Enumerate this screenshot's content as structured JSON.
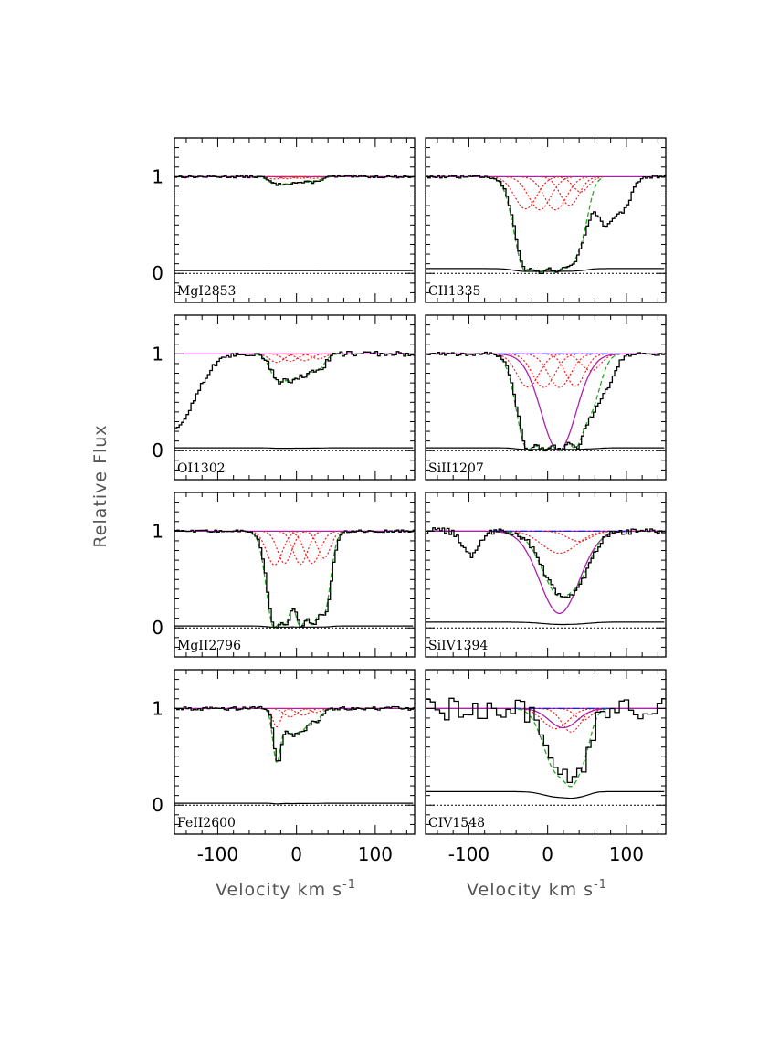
{
  "chart_data": {
    "type": "line",
    "ylabel": "Relative Flux",
    "xlabel": "Velocity km s",
    "xlabel_superscript": "-1",
    "xlim": [
      -155,
      150
    ],
    "ylim": [
      -0.3,
      1.4
    ],
    "xticks": [
      -100,
      0,
      100
    ],
    "xtick_labels": [
      "-100",
      "0",
      "100"
    ],
    "yticks": [
      0,
      1
    ],
    "ytick_labels": [
      "0",
      "1"
    ],
    "legend": "none",
    "colors": {
      "data": "#000000",
      "total_model": "#22aa22",
      "component_model": "#ee2222",
      "alt_model": "#aa22aa",
      "continuum_alt": "#2222cc",
      "zero_level": "#000000"
    },
    "panels": [
      {
        "label": "MgI2853",
        "components": [
          [
            -28,
            0.07,
            8
          ],
          [
            -12,
            0.06,
            8
          ],
          [
            5,
            0.05,
            8
          ],
          [
            22,
            0.05,
            8
          ]
        ],
        "violet": null,
        "features": [],
        "noise": 0.012,
        "error_level": 0.03
      },
      {
        "label": "CII1335",
        "components": [
          [
            -28,
            0.95,
            14
          ],
          [
            -10,
            0.98,
            14
          ],
          [
            10,
            0.98,
            14
          ],
          [
            28,
            0.85,
            12
          ],
          [
            42,
            0.45,
            10
          ]
        ],
        "violet": null,
        "features": [
          [
            72,
            0.5,
            12
          ],
          [
            95,
            0.3,
            10
          ]
        ],
        "noise": 0.015,
        "error_level": 0.05
      },
      {
        "label": "OI1302",
        "components": [
          [
            -25,
            0.25,
            9
          ],
          [
            -8,
            0.22,
            9
          ],
          [
            10,
            0.2,
            9
          ],
          [
            28,
            0.15,
            8
          ]
        ],
        "violet": null,
        "features": [
          [
            -160,
            0.8,
            28
          ]
        ],
        "noise": 0.025,
        "error_level": 0.03
      },
      {
        "label": "SiII1207",
        "components": [
          [
            -25,
            0.98,
            14
          ],
          [
            -5,
            0.99,
            14
          ],
          [
            15,
            0.99,
            14
          ],
          [
            35,
            0.95,
            12
          ],
          [
            55,
            0.5,
            12
          ]
        ],
        "violet": [
          14,
          1.0,
          22
        ],
        "features": [
          [
            75,
            0.25,
            10
          ]
        ],
        "noise": 0.02,
        "error_level": 0.03
      },
      {
        "label": "MgII2796",
        "components": [
          [
            -28,
            1.0,
            10
          ],
          [
            -15,
            0.95,
            9
          ],
          [
            5,
            0.98,
            9
          ],
          [
            20,
            0.95,
            10
          ],
          [
            35,
            0.8,
            8
          ]
        ],
        "violet": null,
        "features": [],
        "noise": 0.012,
        "error_level": 0.02
      },
      {
        "label": "SiIV1394",
        "components": [
          [
            15,
            0.65,
            22
          ],
          [
            40,
            0.3,
            15
          ]
        ],
        "violet": [
          15,
          0.85,
          25
        ],
        "features": [
          [
            -100,
            0.25,
            10
          ]
        ],
        "noise": 0.035,
        "error_level": 0.06
      },
      {
        "label": "FeII2600",
        "components": [
          [
            -25,
            0.55,
            5
          ],
          [
            -8,
            0.25,
            8
          ],
          [
            8,
            0.2,
            8
          ],
          [
            25,
            0.12,
            6
          ]
        ],
        "violet": null,
        "features": [],
        "noise": 0.018,
        "error_level": 0.02
      },
      {
        "label": "CIV1548",
        "components": [
          [
            10,
            0.6,
            16
          ],
          [
            30,
            0.7,
            12
          ],
          [
            45,
            0.35,
            10
          ]
        ],
        "violet": [
          20,
          0.2,
          18
        ],
        "features": [],
        "noise": 0.12,
        "error_level": 0.14
      }
    ]
  }
}
